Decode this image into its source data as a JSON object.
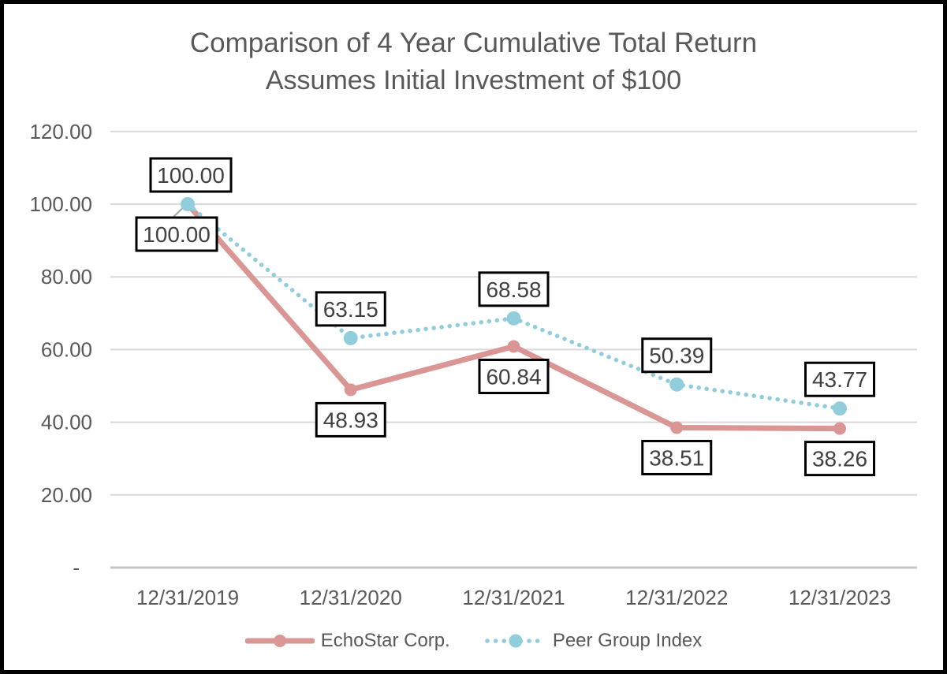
{
  "chart_data": {
    "type": "line",
    "title": "Comparison of 4 Year Cumulative Total Return",
    "subtitle": "Assumes Initial Investment of $100",
    "categories": [
      "12/31/2019",
      "12/31/2020",
      "12/31/2021",
      "12/31/2022",
      "12/31/2023"
    ],
    "series": [
      {
        "name": "EchoStar Corp.",
        "color": "#D99694",
        "line_style": "solid",
        "marker": "circle",
        "values": [
          100.0,
          48.93,
          60.84,
          38.51,
          38.26
        ],
        "data_labels": [
          "100.00",
          "48.93",
          "60.84",
          "38.51",
          "38.26"
        ]
      },
      {
        "name": "Peer Group Index",
        "color": "#92CDDC",
        "line_style": "dotted",
        "marker": "circle",
        "values": [
          100.0,
          63.15,
          68.58,
          50.39,
          43.77
        ],
        "data_labels": [
          "100.00",
          "63.15",
          "68.58",
          "50.39",
          "43.77"
        ]
      }
    ],
    "y_axis": {
      "ticks": [
        {
          "label": "120.00",
          "value": 120
        },
        {
          "label": "100.00",
          "value": 100
        },
        {
          "label": "80.00",
          "value": 80
        },
        {
          "label": "60.00",
          "value": 60
        },
        {
          "label": "40.00",
          "value": 40
        },
        {
          "label": "20.00",
          "value": 20
        },
        {
          "label": "-",
          "value": 0
        }
      ],
      "range": [
        0,
        120
      ]
    },
    "grid": true,
    "legend_position": "bottom",
    "data_labels_boxed": true
  },
  "colors": {
    "axis_text": "#595959",
    "title_text": "#595959",
    "legend_text": "#595959",
    "data_label_text": "#404040",
    "gridline": "#D9D9D9",
    "baseline": "#C6C6C6",
    "leader_line": "#A6A6A6",
    "label_box_fill": "#FFFFFF",
    "label_box_border": "#000000",
    "frame_border": "#000000",
    "background": "#FFFFFF"
  }
}
